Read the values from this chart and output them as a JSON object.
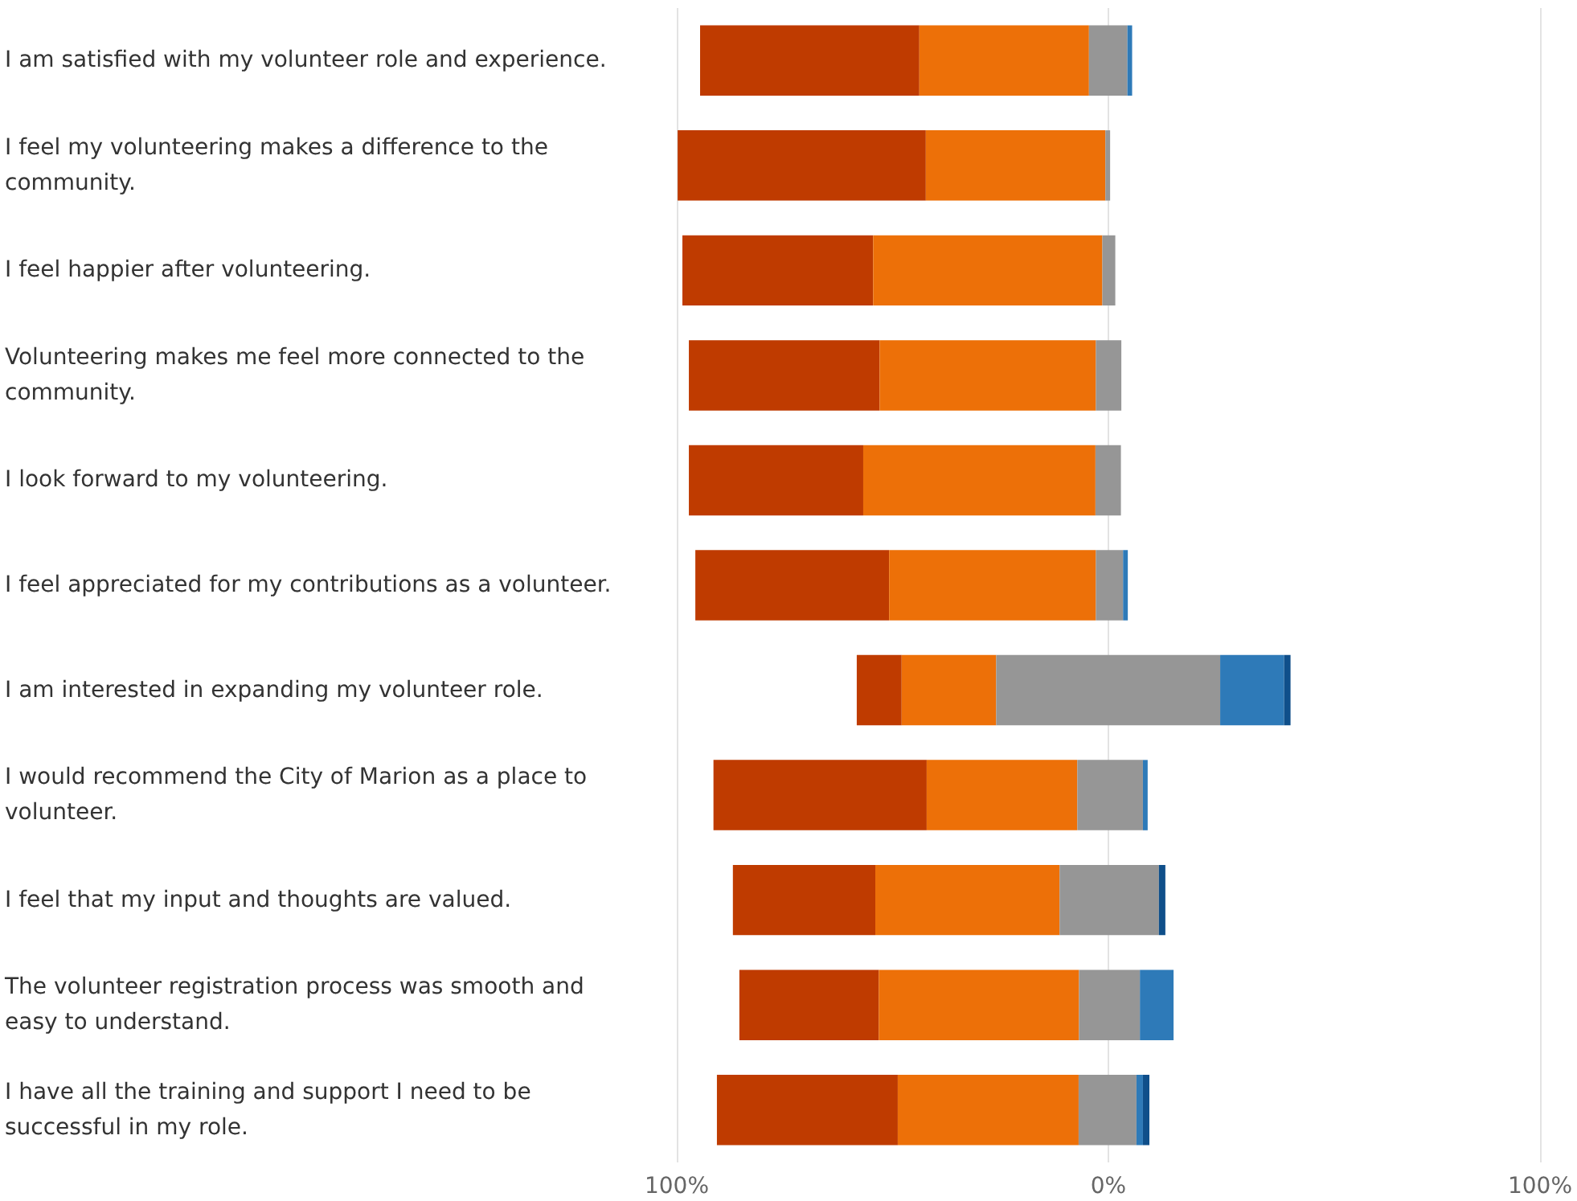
{
  "chart_data": {
    "type": "bar",
    "orientation": "horizontal",
    "categories": [
      "I am satisfied with my volunteer role and experience.",
      "I feel my volunteering makes a difference to the community.",
      "I feel happier after volunteering.",
      "Volunteering makes me feel more connected to the community.",
      "I look forward to my volunteering.",
      "I feel appreciated for my contributions as a volunteer.",
      "I am interested in expanding my volunteer role.",
      "I would recommend the City of Marion as a place to volunteer.",
      "I feel that my input and thoughts are valued.",
      "The volunteer registration process was smooth and easy to understand.",
      "I have all the training and support I need to be successful in my role."
    ],
    "series": [
      {
        "color": "#bf3b00",
        "base": [
          -94.6,
          -99.8,
          -98.7,
          -97.2,
          -97.2,
          -95.7,
          -58.3,
          -91.5,
          -87.0,
          -85.5,
          -90.7
        ],
        "values": [
          50.8,
          57.5,
          44.2,
          44.2,
          40.4,
          44.9,
          10.4,
          49.4,
          33.0,
          32.3,
          41.9
        ]
      },
      {
        "color": "#ed7008",
        "base": [
          -43.8,
          -42.3,
          -54.5,
          -53.0,
          -56.8,
          -50.8,
          -47.9,
          -42.1,
          -54.0,
          -53.2,
          -48.8
        ],
        "values": [
          39.3,
          41.6,
          53.1,
          50.1,
          53.8,
          47.9,
          21.9,
          34.9,
          42.7,
          46.4,
          41.9
        ]
      },
      {
        "color": "#969696",
        "base": [
          -4.5,
          -0.7,
          -1.4,
          -2.9,
          -3.0,
          -2.9,
          -26.0,
          -7.2,
          -11.3,
          -6.8,
          -6.9
        ],
        "values": [
          8.9,
          1.1,
          3.0,
          5.9,
          5.9,
          6.3,
          51.9,
          15.2,
          23.0,
          14.1,
          13.4
        ]
      },
      {
        "color": "#2e7ab8",
        "base": [
          4.4,
          null,
          null,
          null,
          null,
          3.4,
          25.9,
          8.0,
          null,
          7.3,
          6.5
        ],
        "values": [
          1.1,
          null,
          null,
          null,
          null,
          1.1,
          14.8,
          1.1,
          null,
          7.8,
          1.5
        ]
      },
      {
        "color": "#0f4f8a",
        "base": [
          null,
          null,
          null,
          null,
          null,
          null,
          40.7,
          null,
          11.7,
          null,
          8.0
        ],
        "values": [
          null,
          null,
          null,
          null,
          null,
          null,
          1.5,
          null,
          1.5,
          null,
          1.5
        ]
      }
    ],
    "xlim": [
      -100,
      100
    ],
    "xticks": [
      {
        "value": -100,
        "label": "100%"
      },
      {
        "value": 0,
        "label": "0%"
      },
      {
        "value": 100,
        "label": "100%"
      }
    ],
    "grid": "x"
  }
}
